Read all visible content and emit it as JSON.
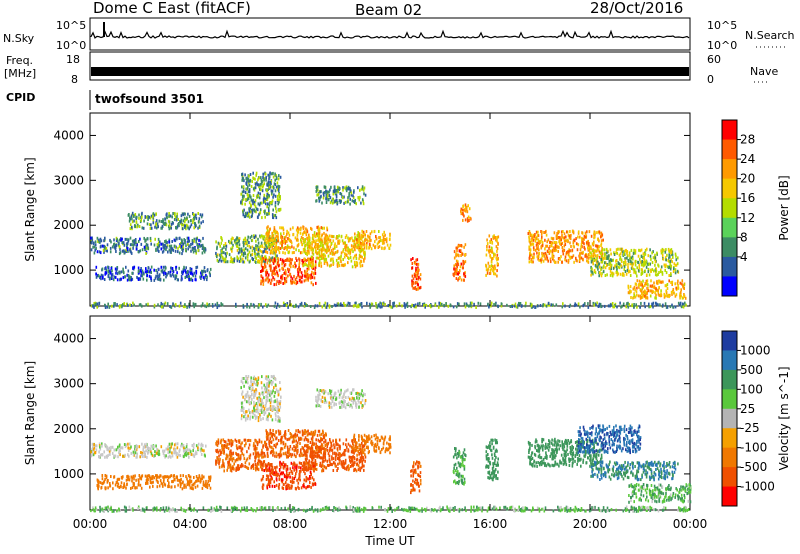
{
  "header": {
    "station": "Dome C East (fitACF)",
    "beam": "Beam 02",
    "date": "28/Oct/2016"
  },
  "top_panels": {
    "nsky_label": "N.Sky",
    "nsky_ticks": [
      "10^5",
      "10^0"
    ],
    "nsearch_label": "N.Search",
    "nsearch_ticks": [
      "10^5",
      "10^0"
    ],
    "freq_label_line1": "Freq.",
    "freq_label_line2": "[MHz]",
    "freq_ticks": [
      "18",
      "8"
    ],
    "nave_label": "Nave",
    "nave_ticks": [
      "60",
      "0"
    ],
    "cpid_label": "CPID",
    "cpid_value": "twofsound 3501"
  },
  "chart_data": [
    {
      "type": "heatmap",
      "panel": "power",
      "ylabel": "Slant Range [km]",
      "y_ticks": [
        1000,
        2000,
        3000,
        4000
      ],
      "ylim": [
        200,
        4500
      ],
      "xlabel": "",
      "colorbar_label": "Power [dB]",
      "colorbar_ticks": [
        "28",
        "24",
        "20",
        "16",
        "12",
        "8",
        "4"
      ],
      "colorbar_colors": [
        "#ff0000",
        "#ff5a00",
        "#ff9a00",
        "#f5c800",
        "#b4dc00",
        "#5ad25a",
        "#3c8c64",
        "#2a5aa0",
        "#0000ff"
      ],
      "regions": [
        {
          "t0": 0.0,
          "t1": 4.6,
          "r0": 1400,
          "r1": 1750,
          "v": 8
        },
        {
          "t0": 0.2,
          "t1": 4.8,
          "r0": 800,
          "r1": 1100,
          "v": 6
        },
        {
          "t0": 1.5,
          "t1": 4.5,
          "r0": 1950,
          "r1": 2300,
          "v": 10
        },
        {
          "t0": 5.0,
          "t1": 7.5,
          "r0": 1200,
          "r1": 1800,
          "v": 12
        },
        {
          "t0": 6.0,
          "t1": 7.6,
          "r0": 2200,
          "r1": 3200,
          "v": 10
        },
        {
          "t0": 6.8,
          "t1": 9.0,
          "r0": 700,
          "r1": 1300,
          "v": 26
        },
        {
          "t0": 7.0,
          "t1": 9.5,
          "r0": 1400,
          "r1": 2000,
          "v": 20
        },
        {
          "t0": 8.5,
          "t1": 11.0,
          "r0": 1100,
          "r1": 1800,
          "v": 18
        },
        {
          "t0": 9.0,
          "t1": 11.0,
          "r0": 2500,
          "r1": 2900,
          "v": 10
        },
        {
          "t0": 10.5,
          "t1": 12.0,
          "r0": 1500,
          "r1": 1900,
          "v": 20
        },
        {
          "t0": 12.8,
          "t1": 13.2,
          "r0": 600,
          "r1": 1300,
          "v": 26
        },
        {
          "t0": 14.5,
          "t1": 15.0,
          "r0": 800,
          "r1": 1600,
          "v": 24
        },
        {
          "t0": 14.8,
          "t1": 15.2,
          "r0": 2100,
          "r1": 2500,
          "v": 22
        },
        {
          "t0": 15.8,
          "t1": 16.3,
          "r0": 900,
          "r1": 1800,
          "v": 20
        },
        {
          "t0": 17.5,
          "t1": 20.5,
          "r0": 1200,
          "r1": 1900,
          "v": 22
        },
        {
          "t0": 20.0,
          "t1": 23.5,
          "r0": 900,
          "r1": 1500,
          "v": 14
        },
        {
          "t0": 21.5,
          "t1": 23.8,
          "r0": 400,
          "r1": 800,
          "v": 20
        },
        {
          "t0": 0.0,
          "t1": 24.0,
          "r0": 200,
          "r1": 300,
          "v": 10
        }
      ]
    },
    {
      "type": "heatmap",
      "panel": "velocity",
      "ylabel": "Slant Range [km]",
      "y_ticks": [
        1000,
        2000,
        3000,
        4000
      ],
      "ylim": [
        200,
        4500
      ],
      "xlabel": "Time UT",
      "x_ticks": [
        "00:00",
        "04:00",
        "08:00",
        "12:00",
        "16:00",
        "20:00",
        "00:00"
      ],
      "xlim": [
        0,
        24
      ],
      "colorbar_label": "Velocity [m s^-1]",
      "colorbar_ticks": [
        "1000",
        "500",
        "100",
        "25",
        "-25",
        "-100",
        "-500",
        "-1000"
      ],
      "colorbar_colors": [
        "#1e3ca0",
        "#2878b4",
        "#3c965a",
        "#5ac83c",
        "#b4b4b4",
        "#f5a000",
        "#f07800",
        "#f05000",
        "#ff0000"
      ],
      "regions": [
        {
          "t0": 0.0,
          "t1": 4.6,
          "r0": 1400,
          "r1": 1700,
          "v": 0
        },
        {
          "t0": 0.2,
          "t1": 4.8,
          "r0": 700,
          "r1": 1000,
          "v": -200
        },
        {
          "t0": 5.0,
          "t1": 7.0,
          "r0": 1100,
          "r1": 1800,
          "v": -300
        },
        {
          "t0": 6.0,
          "t1": 7.6,
          "r0": 2200,
          "r1": 3200,
          "v": 0
        },
        {
          "t0": 6.8,
          "t1": 9.0,
          "r0": 700,
          "r1": 1300,
          "v": -600
        },
        {
          "t0": 7.0,
          "t1": 9.5,
          "r0": 1400,
          "r1": 2000,
          "v": -300
        },
        {
          "t0": 8.5,
          "t1": 11.0,
          "r0": 1100,
          "r1": 1800,
          "v": -400
        },
        {
          "t0": 9.0,
          "t1": 11.0,
          "r0": 2500,
          "r1": 2900,
          "v": 0
        },
        {
          "t0": 10.5,
          "t1": 12.0,
          "r0": 1500,
          "r1": 1900,
          "v": -200
        },
        {
          "t0": 12.8,
          "t1": 13.2,
          "r0": 600,
          "r1": 1300,
          "v": -400
        },
        {
          "t0": 14.5,
          "t1": 15.0,
          "r0": 800,
          "r1": 1600,
          "v": 80
        },
        {
          "t0": 15.8,
          "t1": 16.3,
          "r0": 900,
          "r1": 1800,
          "v": 120
        },
        {
          "t0": 17.5,
          "t1": 20.5,
          "r0": 1200,
          "r1": 1800,
          "v": 200
        },
        {
          "t0": 19.5,
          "t1": 22.0,
          "r0": 1500,
          "r1": 2100,
          "v": 700
        },
        {
          "t0": 20.0,
          "t1": 23.5,
          "r0": 900,
          "r1": 1300,
          "v": 300
        },
        {
          "t0": 21.5,
          "t1": 24.0,
          "r0": 400,
          "r1": 800,
          "v": 60
        },
        {
          "t0": 0.0,
          "t1": 24.0,
          "r0": 200,
          "r1": 300,
          "v": 50
        }
      ]
    }
  ]
}
